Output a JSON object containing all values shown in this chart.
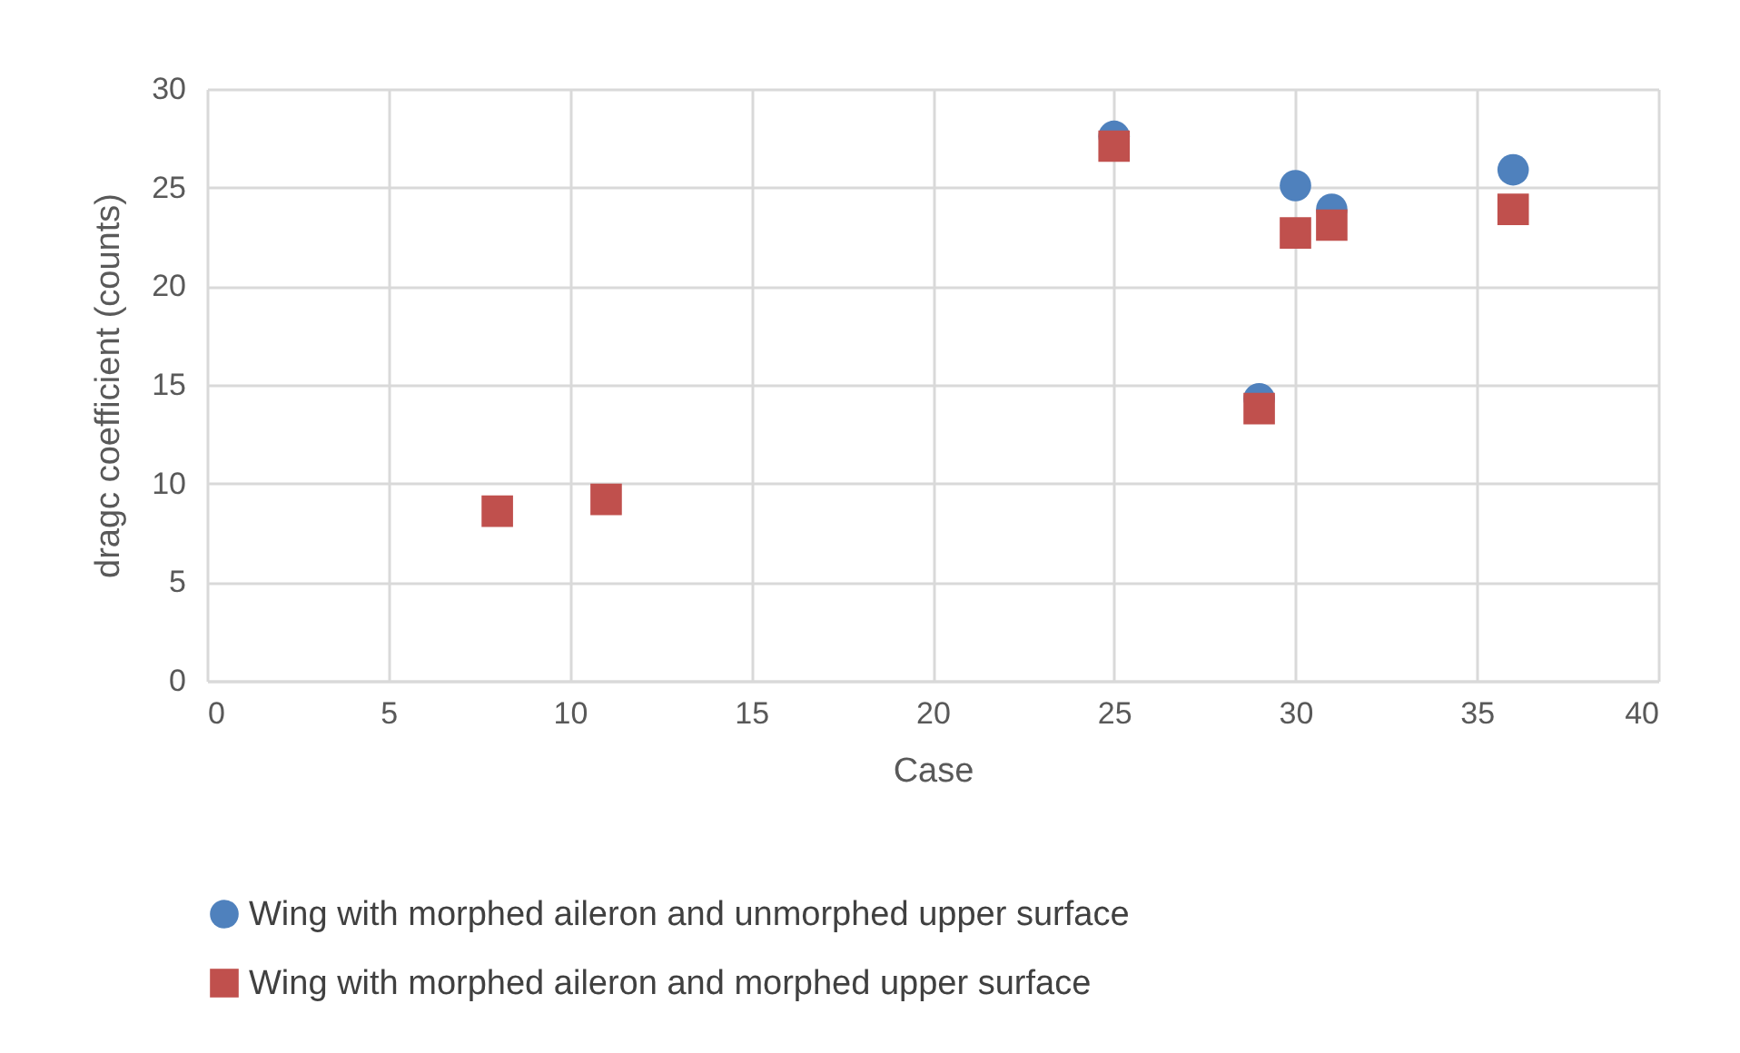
{
  "chart_data": {
    "type": "scatter",
    "xlabel": "Case",
    "ylabel": "dragc coefficient (counts)",
    "xlim": [
      0,
      40
    ],
    "xticks": [
      0,
      5,
      10,
      15,
      20,
      25,
      30,
      35,
      40
    ],
    "ylim": [
      0,
      30
    ],
    "yticks": [
      0,
      5,
      10,
      15,
      20,
      25,
      30
    ],
    "grid": true,
    "legend": "bottom",
    "series": [
      {
        "name": "Wing with morphed aileron and unmorphed upper surface",
        "color": "#4f81bd",
        "marker": "circle",
        "x": [
          25,
          29,
          30,
          31,
          36
        ],
        "values": [
          27.6,
          14.3,
          25.1,
          23.9,
          25.9
        ]
      },
      {
        "name": "Wing with morphed aileron and morphed upper surface",
        "color": "#c0504d",
        "marker": "square",
        "x": [
          8,
          11,
          25,
          29,
          30,
          31,
          36
        ],
        "values": [
          8.6,
          9.2,
          27.1,
          13.8,
          22.7,
          23.1,
          23.9
        ]
      }
    ]
  }
}
